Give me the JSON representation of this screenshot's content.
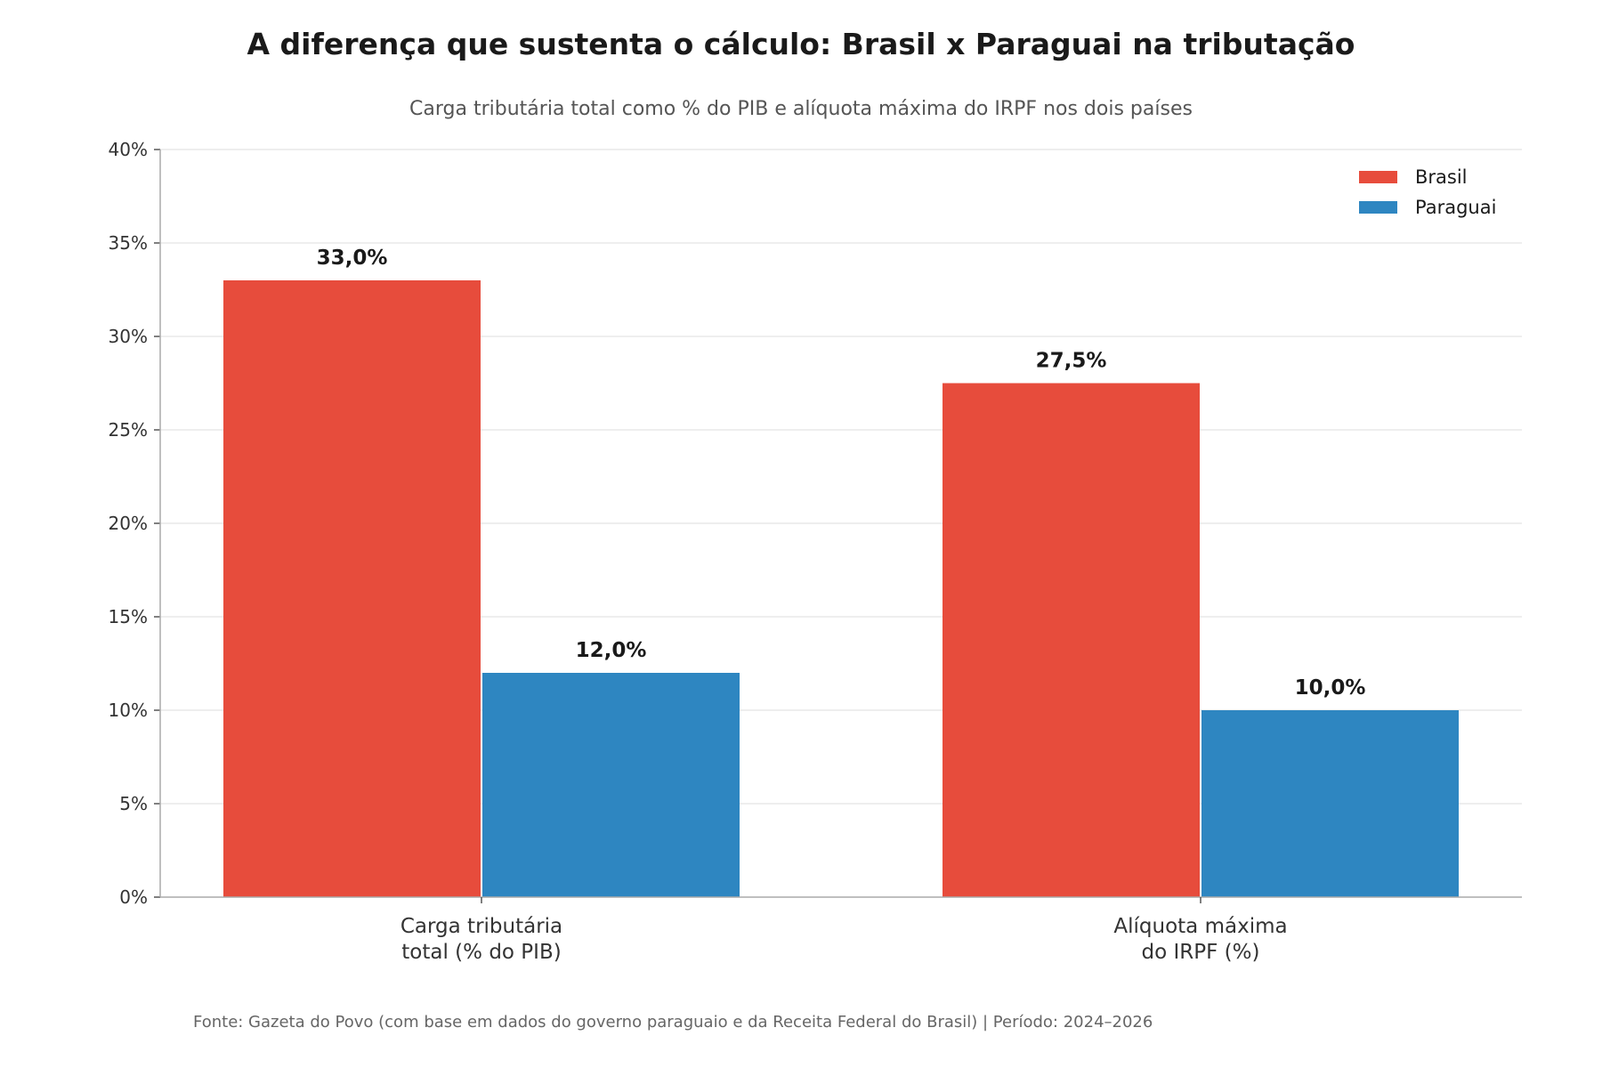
{
  "chart_data": {
    "type": "bar",
    "title": "A diferença que sustenta o cálculo: Brasil x Paraguai na tributação",
    "subtitle": "Carga tributária total como % do PIB e alíquota máxima do IRPF nos dois países",
    "categories": [
      [
        "Carga tributária",
        "total (% do PIB)"
      ],
      [
        "Alíquota máxima",
        "do IRPF (%)"
      ]
    ],
    "series": [
      {
        "name": "Brasil",
        "color": "#e74c3c",
        "values": [
          33.0,
          27.5
        ],
        "labels": [
          "33,0%",
          "27,5%"
        ]
      },
      {
        "name": "Paraguai",
        "color": "#2e86c1",
        "values": [
          12.0,
          10.0
        ],
        "labels": [
          "12,0%",
          "10,0%"
        ]
      }
    ],
    "xlabel": "",
    "ylabel": "",
    "ylim": [
      0,
      40
    ],
    "yticks": [
      0,
      5,
      10,
      15,
      20,
      25,
      30,
      35,
      40
    ],
    "ytick_labels": [
      "0%",
      "5%",
      "10%",
      "15%",
      "20%",
      "25%",
      "30%",
      "35%",
      "40%"
    ],
    "grid": "horizontal",
    "legend_position": "top-right",
    "footer": "Fonte: Gazeta do Povo (com base em dados do governo paraguaio e da Receita Federal do Brasil) | Período: 2024–2026"
  }
}
